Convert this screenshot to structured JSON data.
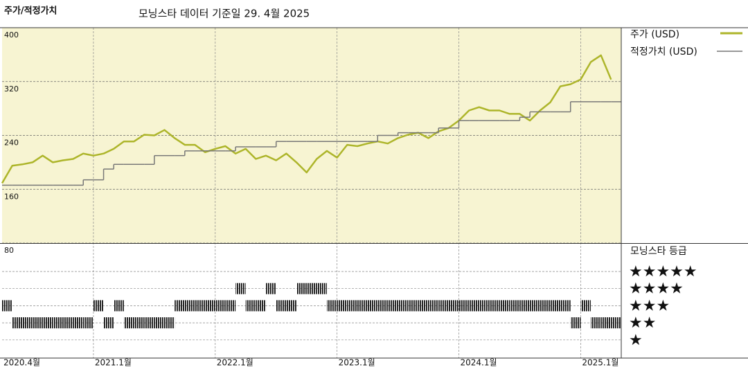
{
  "chart_data": [
    {
      "type": "line",
      "title": "주가/적정가치",
      "subtitle": "모닝스타 데이터 기준일 29. 4월 2025",
      "x": [
        "2020-04",
        "2020-05",
        "2020-06",
        "2020-07",
        "2020-08",
        "2020-09",
        "2020-10",
        "2020-11",
        "2020-12",
        "2021-01",
        "2021-02",
        "2021-03",
        "2021-04",
        "2021-05",
        "2021-06",
        "2021-07",
        "2021-08",
        "2021-09",
        "2021-10",
        "2021-11",
        "2021-12",
        "2022-01",
        "2022-02",
        "2022-03",
        "2022-04",
        "2022-05",
        "2022-06",
        "2022-07",
        "2022-08",
        "2022-09",
        "2022-10",
        "2022-11",
        "2022-12",
        "2023-01",
        "2023-02",
        "2023-03",
        "2023-04",
        "2023-05",
        "2023-06",
        "2023-07",
        "2023-08",
        "2023-09",
        "2023-10",
        "2023-11",
        "2023-12",
        "2024-01",
        "2024-02",
        "2024-03",
        "2024-04",
        "2024-05",
        "2024-06",
        "2024-07",
        "2024-08",
        "2024-09",
        "2024-10",
        "2024-11",
        "2024-12",
        "2025-01",
        "2025-02",
        "2025-03",
        "2025-04"
      ],
      "xticks": [
        {
          "value": "2020-04",
          "label": "2020.4월"
        },
        {
          "value": "2021-01",
          "label": "2021.1월"
        },
        {
          "value": "2022-01",
          "label": "2022.1월"
        },
        {
          "value": "2023-01",
          "label": "2023.1월"
        },
        {
          "value": "2024-01",
          "label": "2024.1월"
        },
        {
          "value": "2025-01",
          "label": "2025.1월"
        }
      ],
      "ylim": [
        80,
        400
      ],
      "yticks": [
        80,
        160,
        240,
        320,
        400
      ],
      "grid": true,
      "series": [
        {
          "name": "주가 (USD)",
          "color": "#adb52a",
          "values": [
            169,
            195,
            197,
            200,
            210,
            200,
            203,
            205,
            213,
            210,
            213,
            220,
            231,
            231,
            241,
            240,
            248,
            236,
            226,
            226,
            215,
            220,
            224,
            213,
            220,
            205,
            210,
            203,
            213,
            200,
            185,
            205,
            217,
            207,
            226,
            224,
            228,
            231,
            228,
            236,
            241,
            244,
            236,
            246,
            251,
            262,
            277,
            282,
            277,
            277,
            272,
            272,
            262,
            277,
            289,
            313,
            316,
            323,
            349,
            359,
            323
          ]
        },
        {
          "name": "적정가치 (USD)",
          "color": "#777777",
          "step": true,
          "values": [
            166,
            166,
            166,
            166,
            166,
            166,
            166,
            166,
            174,
            174,
            190,
            197,
            197,
            197,
            197,
            210,
            210,
            210,
            217,
            217,
            217,
            217,
            217,
            223,
            223,
            223,
            223,
            231,
            231,
            231,
            231,
            231,
            231,
            231,
            231,
            231,
            231,
            240,
            240,
            244,
            244,
            244,
            244,
            251,
            251,
            262,
            262,
            262,
            262,
            262,
            262,
            267,
            275,
            275,
            275,
            275,
            290,
            290,
            290,
            290,
            290
          ]
        }
      ]
    },
    {
      "type": "rating",
      "title": "모닝스타 등급",
      "levels": [
        "★★★★★",
        "★★★★",
        "★★★",
        "★★",
        "★"
      ],
      "values": [
        3,
        2,
        2,
        2,
        2,
        2,
        2,
        2,
        2,
        3,
        2,
        3,
        2,
        2,
        2,
        2,
        2,
        3,
        3,
        3,
        3,
        3,
        3,
        4,
        3,
        3,
        4,
        3,
        3,
        4,
        4,
        4,
        3,
        3,
        3,
        3,
        3,
        3,
        3,
        3,
        3,
        3,
        3,
        3,
        3,
        3,
        3,
        3,
        3,
        3,
        3,
        3,
        3,
        3,
        3,
        3,
        2,
        3,
        2,
        2,
        2
      ]
    }
  ]
}
